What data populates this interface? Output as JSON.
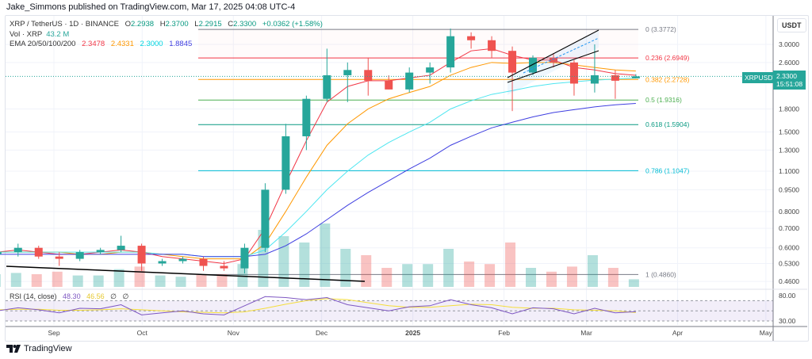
{
  "publisher": "Jake_Simmons published on TradingView.com, Mar 17, 2025 04:08 UTC-4",
  "legend": {
    "symbol": "XRP / TetherUS · 1D · BINANCE",
    "open_label": "O",
    "open": "2.2938",
    "high_label": "H",
    "high": "2.3700",
    "low_label": "L",
    "low": "2.2915",
    "close_label": "C",
    "close": "2.3300",
    "change": "+0.0362 (+1.58%)",
    "vol_label": "Vol · XRP",
    "vol": "43.2 M",
    "ema_label": "EMA 20/50/100/200",
    "ema20": "2.3478",
    "ema50": "2.4331",
    "ema100": "2.3000",
    "ema200": "1.8845",
    "rsi_label": "RSI (14, close)",
    "rsi": "48.30",
    "rsi_ma": "46.56",
    "rsi_extra1": "∅",
    "rsi_extra2": "∅"
  },
  "price_axis": {
    "unit": "USDT",
    "ticks": [
      "3.0000",
      "2.6000",
      "1.8000",
      "1.5000",
      "1.3000",
      "1.1000",
      "0.9500",
      "0.8000",
      "0.7000",
      "0.6000",
      "0.5300",
      "0.4600"
    ],
    "scale": "log"
  },
  "rsi_axis": {
    "ticks": [
      "80.00",
      "30.00"
    ]
  },
  "time_axis": {
    "ticks": [
      "Sep",
      "Oct",
      "Nov",
      "Dec",
      "2025",
      "Feb",
      "Mar",
      "Apr",
      "May"
    ]
  },
  "current": {
    "symbol": "XRPUSDT",
    "price": "2.3300",
    "countdown": "15:51:08"
  },
  "fib_levels": [
    {
      "label": "0 (3.3772)",
      "price": 3.3772,
      "color": "#787b86"
    },
    {
      "label": "0.236 (2.6949)",
      "price": 2.6949,
      "color": "#f23645"
    },
    {
      "label": "0.382 (2.2728)",
      "price": 2.2728,
      "color": "#ff9800"
    },
    {
      "label": "0.5 (1.9316)",
      "price": 1.9316,
      "color": "#4caf50"
    },
    {
      "label": "0.618 (1.5904)",
      "price": 1.5904,
      "color": "#089981"
    },
    {
      "label": "0.786 (1.1047)",
      "price": 1.1047,
      "color": "#00bcd4"
    },
    {
      "label": "1 (0.4860)",
      "price": 0.486,
      "color": "#787b86"
    }
  ],
  "colors": {
    "up": "#26a69a",
    "down": "#ef5350",
    "ema20": "#f23645",
    "ema50": "#ff9800",
    "ema100": "#4ee6f0",
    "ema200": "#3f3fe0",
    "rsi": "#7e57c2",
    "rsi_ma": "#f5de3a"
  },
  "logo": "TradingView",
  "chart_data": {
    "type": "candlestick",
    "title": "XRP / TetherUS · 1D · BINANCE",
    "ylim": [
      0.44,
      3.6
    ],
    "yscale": "log",
    "dates": [
      "2024-08-12",
      "2024-08-19",
      "2024-08-26",
      "2024-09-02",
      "2024-09-09",
      "2024-09-16",
      "2024-09-23",
      "2024-09-30",
      "2024-10-07",
      "2024-10-14",
      "2024-10-21",
      "2024-10-28",
      "2024-11-04",
      "2024-11-11",
      "2024-11-18",
      "2024-11-25",
      "2024-12-02",
      "2024-12-09",
      "2024-12-16",
      "2024-12-23",
      "2024-12-30",
      "2025-01-06",
      "2025-01-13",
      "2025-01-20",
      "2025-01-27",
      "2025-02-03",
      "2025-02-10",
      "2025-02-17",
      "2025-02-24",
      "2025-03-03",
      "2025-03-10",
      "2025-03-17"
    ],
    "ohlc": [
      [
        0.57,
        0.6,
        0.55,
        0.58
      ],
      [
        0.58,
        0.62,
        0.56,
        0.6
      ],
      [
        0.6,
        0.61,
        0.55,
        0.56
      ],
      [
        0.56,
        0.58,
        0.52,
        0.55
      ],
      [
        0.55,
        0.59,
        0.54,
        0.58
      ],
      [
        0.58,
        0.6,
        0.57,
        0.59
      ],
      [
        0.59,
        0.66,
        0.58,
        0.61
      ],
      [
        0.61,
        0.62,
        0.5,
        0.53
      ],
      [
        0.53,
        0.55,
        0.52,
        0.54
      ],
      [
        0.54,
        0.56,
        0.53,
        0.55
      ],
      [
        0.55,
        0.56,
        0.5,
        0.52
      ],
      [
        0.52,
        0.54,
        0.5,
        0.51
      ],
      [
        0.51,
        0.62,
        0.49,
        0.6
      ],
      [
        0.6,
        1.0,
        0.58,
        0.95
      ],
      [
        0.95,
        1.6,
        0.92,
        1.45
      ],
      [
        1.45,
        2.0,
        1.3,
        1.95
      ],
      [
        1.95,
        2.9,
        1.9,
        2.35
      ],
      [
        2.35,
        2.6,
        1.9,
        2.45
      ],
      [
        2.45,
        2.7,
        2.0,
        2.25
      ],
      [
        2.25,
        2.35,
        2.1,
        2.1
      ],
      [
        2.1,
        2.5,
        2.05,
        2.4
      ],
      [
        2.4,
        2.6,
        2.2,
        2.5
      ],
      [
        2.5,
        3.4,
        2.4,
        3.2
      ],
      [
        3.2,
        3.3,
        2.9,
        3.1
      ],
      [
        3.1,
        3.2,
        2.7,
        2.85
      ],
      [
        2.85,
        2.95,
        1.77,
        2.4
      ],
      [
        2.4,
        2.75,
        2.35,
        2.7
      ],
      [
        2.7,
        2.8,
        2.5,
        2.6
      ],
      [
        2.6,
        2.65,
        2.0,
        2.2
      ],
      [
        2.2,
        3.0,
        2.05,
        2.35
      ],
      [
        2.35,
        2.45,
        1.95,
        2.25
      ],
      [
        2.2938,
        2.37,
        2.2915,
        2.33
      ]
    ],
    "volume_relative": [
      1,
      1.1,
      1,
      1.2,
      0.9,
      0.9,
      1.4,
      1.6,
      0.9,
      0.8,
      1,
      1,
      1.8,
      4.5,
      4,
      3.5,
      5,
      3,
      2.5,
      1.5,
      1.8,
      1.8,
      3,
      2,
      1.8,
      3.5,
      1.5,
      1.2,
      1.6,
      2.5,
      1.5,
      0.6
    ],
    "series": [
      {
        "name": "EMA 20",
        "values": [
          0.58,
          0.59,
          0.58,
          0.57,
          0.57,
          0.58,
          0.59,
          0.58,
          0.56,
          0.55,
          0.54,
          0.53,
          0.55,
          0.7,
          1.0,
          1.4,
          1.9,
          2.15,
          2.25,
          2.25,
          2.3,
          2.35,
          2.6,
          2.85,
          2.9,
          2.75,
          2.65,
          2.65,
          2.5,
          2.45,
          2.38,
          2.35
        ]
      },
      {
        "name": "EMA 50",
        "values": [
          0.58,
          0.58,
          0.58,
          0.58,
          0.57,
          0.57,
          0.58,
          0.58,
          0.57,
          0.56,
          0.55,
          0.55,
          0.55,
          0.62,
          0.8,
          1.05,
          1.35,
          1.6,
          1.8,
          1.95,
          2.05,
          2.15,
          2.35,
          2.5,
          2.6,
          2.58,
          2.6,
          2.6,
          2.55,
          2.5,
          2.45,
          2.43
        ]
      },
      {
        "name": "EMA 100",
        "values": [
          0.58,
          0.58,
          0.58,
          0.58,
          0.58,
          0.58,
          0.58,
          0.58,
          0.57,
          0.57,
          0.56,
          0.56,
          0.56,
          0.59,
          0.68,
          0.8,
          0.95,
          1.1,
          1.25,
          1.38,
          1.5,
          1.62,
          1.8,
          1.92,
          2.02,
          2.08,
          2.15,
          2.2,
          2.23,
          2.26,
          2.28,
          2.3
        ]
      },
      {
        "name": "EMA 200",
        "values": [
          0.57,
          0.57,
          0.57,
          0.57,
          0.57,
          0.57,
          0.57,
          0.57,
          0.57,
          0.57,
          0.56,
          0.56,
          0.56,
          0.57,
          0.61,
          0.67,
          0.75,
          0.84,
          0.93,
          1.02,
          1.12,
          1.22,
          1.35,
          1.45,
          1.55,
          1.62,
          1.69,
          1.75,
          1.79,
          1.83,
          1.86,
          1.88
        ]
      }
    ],
    "rsi": {
      "ylim": [
        30,
        80
      ],
      "bands": [
        70,
        50,
        30
      ],
      "values": [
        50,
        56,
        52,
        46,
        55,
        54,
        62,
        42,
        46,
        50,
        44,
        42,
        60,
        78,
        76,
        72,
        76,
        62,
        56,
        50,
        58,
        60,
        72,
        62,
        56,
        44,
        56,
        54,
        44,
        55,
        46,
        48.3
      ],
      "ma": [
        52,
        53,
        53,
        51,
        51,
        52,
        54,
        52,
        50,
        48,
        47,
        46,
        48,
        55,
        63,
        70,
        74,
        72,
        66,
        60,
        57,
        57,
        60,
        63,
        62,
        57,
        55,
        55,
        52,
        51,
        50,
        46.56
      ]
    }
  }
}
